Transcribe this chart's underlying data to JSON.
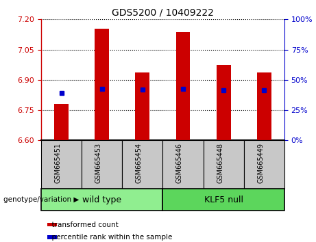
{
  "title": "GDS5200 / 10409222",
  "categories": [
    "GSM665451",
    "GSM665453",
    "GSM665454",
    "GSM665446",
    "GSM665448",
    "GSM665449"
  ],
  "bar_values": [
    6.78,
    7.155,
    6.935,
    7.135,
    6.975,
    6.935
  ],
  "blue_dot_values": [
    6.835,
    6.855,
    6.852,
    6.855,
    6.848,
    6.848
  ],
  "ylim": [
    6.6,
    7.2
  ],
  "yticks_left": [
    6.6,
    6.75,
    6.9,
    7.05,
    7.2
  ],
  "yticks_right": [
    0,
    25,
    50,
    75,
    100
  ],
  "bar_color": "#CC0000",
  "dot_color": "#0000CC",
  "bar_bottom": 6.6,
  "grid_color": "#000000",
  "legend_items": [
    "transformed count",
    "percentile rank within the sample"
  ],
  "group_label_text": "genotype/variation",
  "wild_type_color": "#90EE90",
  "klf5_color": "#5CD65C",
  "gray_box_color": "#C8C8C8",
  "n_wild": 3,
  "n_klf5": 3
}
